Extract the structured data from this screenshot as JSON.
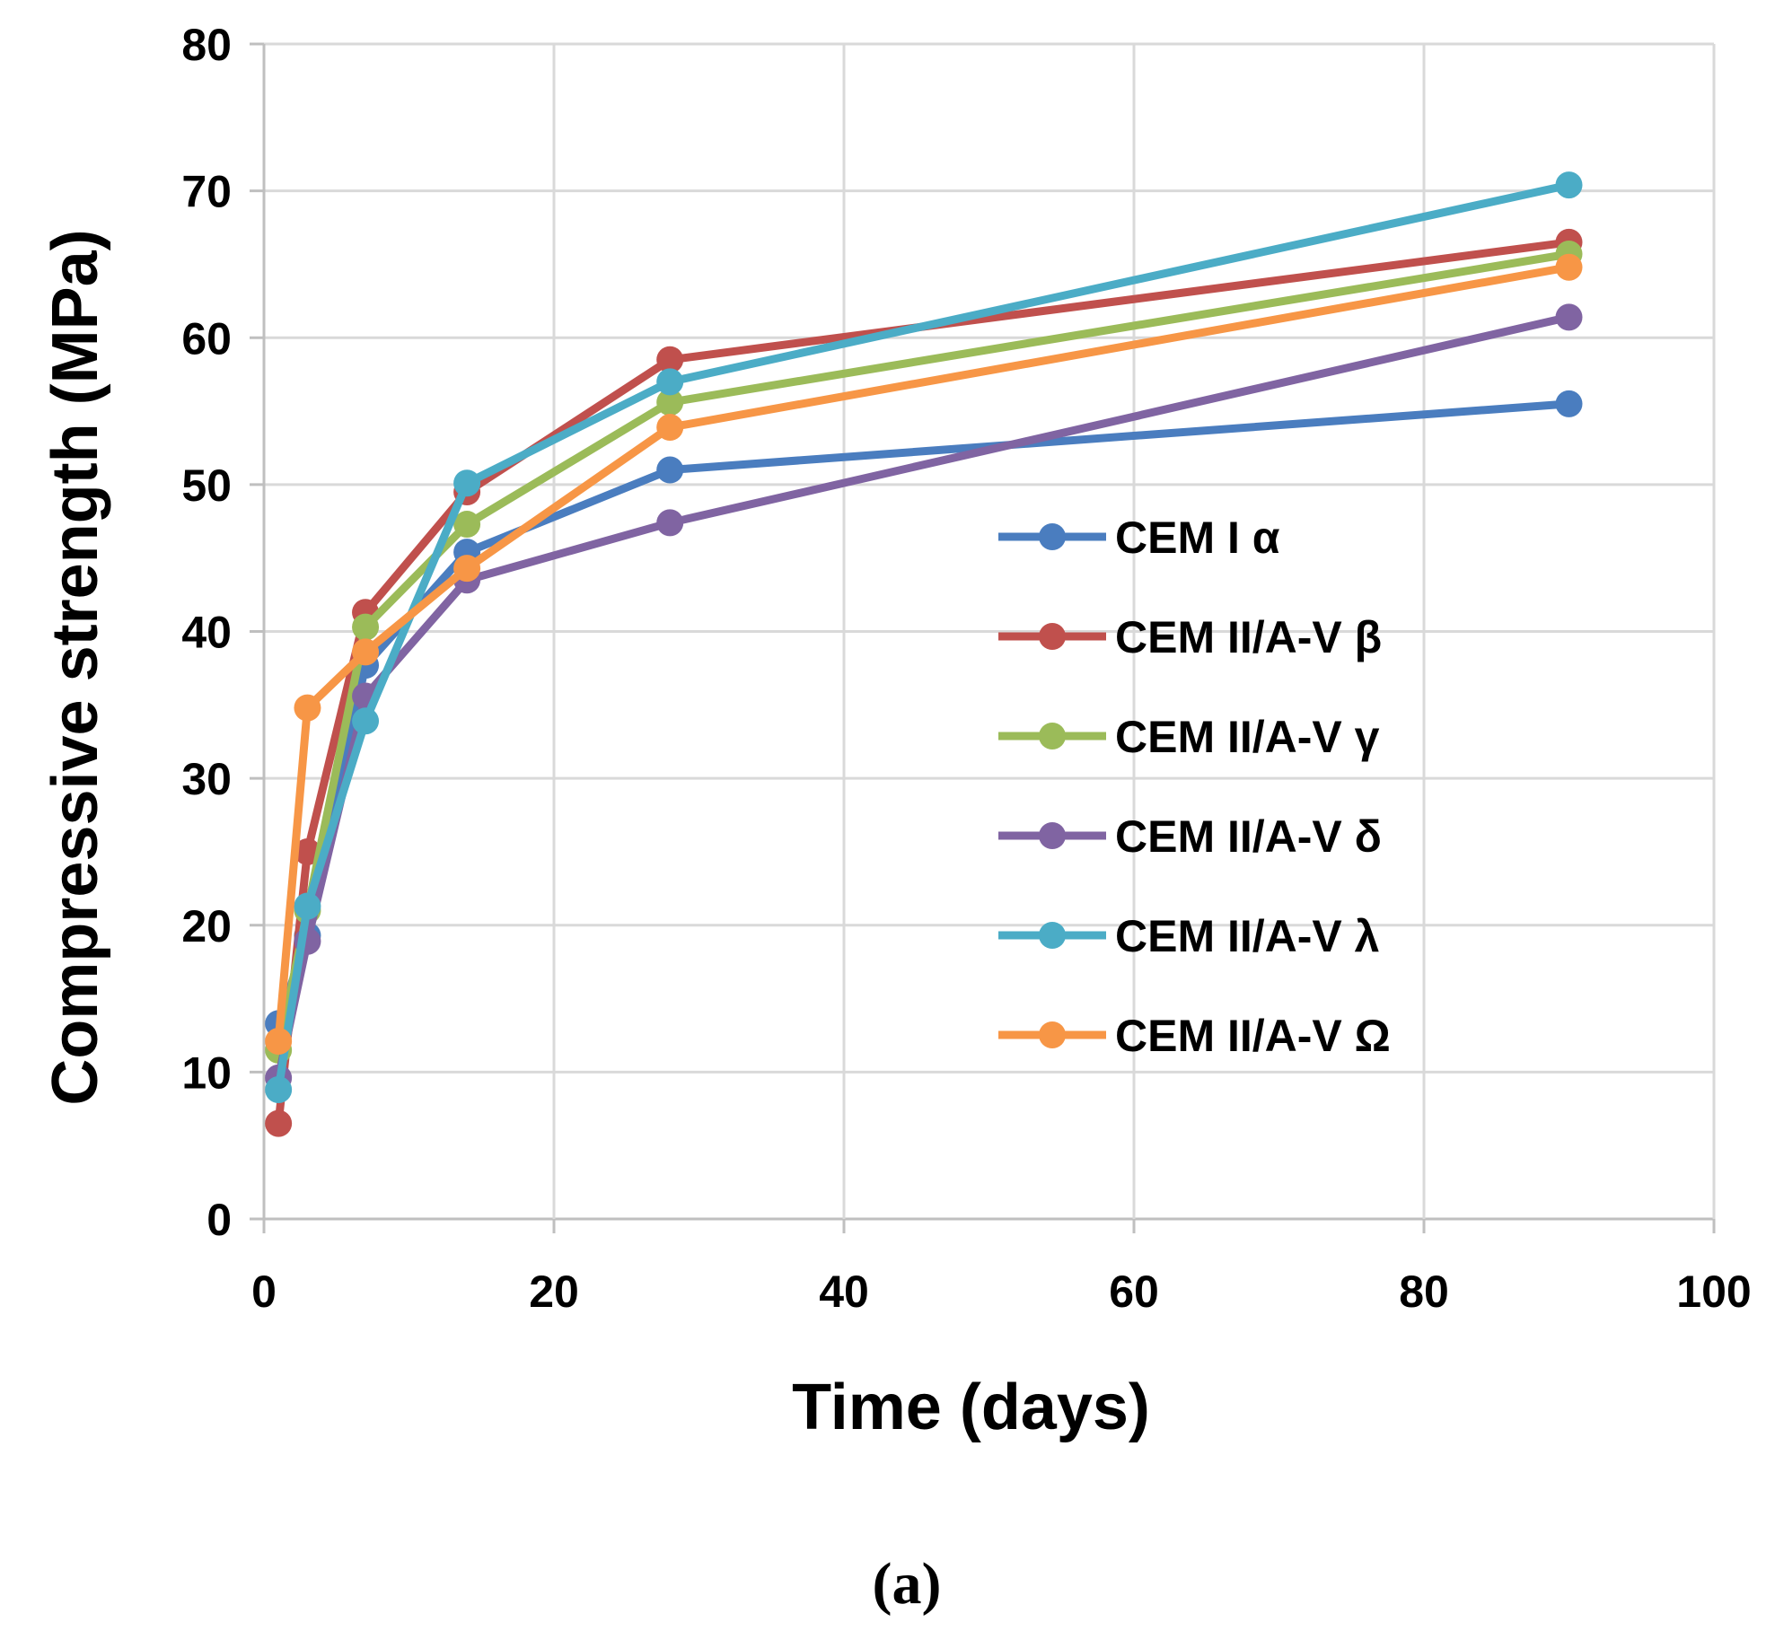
{
  "chart_data": {
    "type": "line",
    "title": "",
    "xlabel": "Time (days)",
    "ylabel": "Compressive strength (MPa)",
    "xlim": [
      0,
      100
    ],
    "ylim": [
      0,
      80
    ],
    "xticks": [
      0,
      20,
      40,
      60,
      80,
      100
    ],
    "yticks": [
      0,
      10,
      20,
      30,
      40,
      50,
      60,
      70,
      80
    ],
    "grid": true,
    "legend_position": "right-middle",
    "x": [
      1,
      3,
      7,
      14,
      28,
      90
    ],
    "series": [
      {
        "name": "CEM I α",
        "color": "#4a7dbf",
        "values": [
          13.3,
          19.3,
          37.7,
          45.4,
          51.0,
          55.5
        ]
      },
      {
        "name": "CEM II/A-V β",
        "color": "#c0504d",
        "values": [
          6.5,
          25.0,
          41.3,
          49.5,
          58.5,
          66.5
        ]
      },
      {
        "name": "CEM II/A-V γ",
        "color": "#9bbb59",
        "values": [
          11.5,
          21.0,
          40.3,
          47.3,
          55.6,
          65.7
        ]
      },
      {
        "name": "CEM II/A-V δ",
        "color": "#8064a2",
        "values": [
          9.6,
          18.9,
          35.6,
          43.5,
          47.4,
          61.4
        ]
      },
      {
        "name": "CEM II/A-V λ",
        "color": "#4bacc6",
        "values": [
          8.8,
          21.3,
          33.9,
          50.1,
          57.0,
          70.4
        ]
      },
      {
        "name": "CEM II/A-V Ω",
        "color": "#f79646",
        "values": [
          12.1,
          34.8,
          38.6,
          44.3,
          53.9,
          64.8
        ]
      }
    ]
  },
  "caption": "(a)"
}
